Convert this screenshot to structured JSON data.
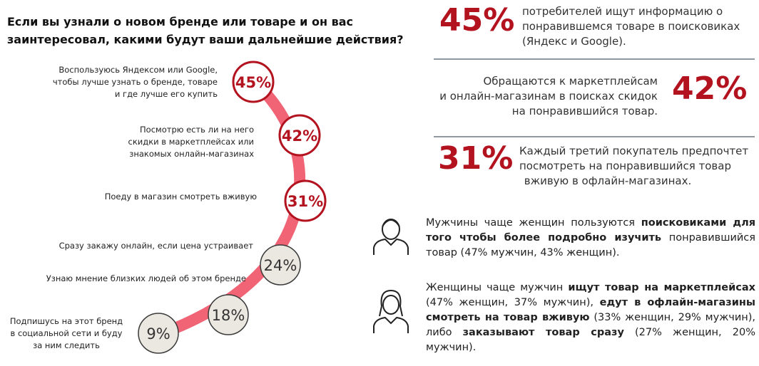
{
  "title": "Если вы узнали о новом бренде или товаре и он вас заинтересовал, какими будут ваши дальнейшие действия?",
  "items": [
    {
      "lines": [
        "Воспользуюсь Яндексом или Google,",
        "чтобы лучше узнать о бренде, товаре",
        "и где лучше его купить"
      ],
      "value": "45%"
    },
    {
      "lines": [
        "Посмотрю есть ли на него",
        "скидки в маркетплейсах или",
        "знакомых онлайн-магазинах"
      ],
      "value": "42%"
    },
    {
      "lines": [
        "Поеду в магазин смотреть вживую"
      ],
      "value": "31%"
    },
    {
      "lines": [
        "Сразу закажу онлайн, если цена устраивает"
      ],
      "value": "24%"
    },
    {
      "lines": [
        "Узнаю мнение близких людей об этом бренде"
      ],
      "value": "18%"
    },
    {
      "lines": [
        "Подпишусь на этот бренд",
        "в социальной сети и буду",
        "за ним следить"
      ],
      "value": "9%"
    }
  ],
  "facts": [
    {
      "value": "45%",
      "lines": [
        "потребителей ищут информацию о",
        "понравившемся товаре в поисковиках",
        "(Яндекс и Google)."
      ]
    },
    {
      "value": "42%",
      "lines": [
        "Обращаются к маркетплейсам",
        "и онлайн-магазинам в поисках скидок",
        "на понравившийся товар."
      ]
    },
    {
      "value": "31%",
      "lines": [
        "Каждый третий покупатель предпочтет",
        "посмотреть на понравившийся товар",
        "вживую в офлайн-магазинах."
      ]
    }
  ],
  "notes": [
    {
      "segments": [
        {
          "text": "Мужчины чаще женщин пользуются ",
          "bold": false
        },
        {
          "text": "поисковиками для того чтобы более подробно изучить",
          "bold": true
        },
        {
          "text": " понравившийся товар (47% мужчин, 43% женщин).",
          "bold": false
        }
      ]
    },
    {
      "segments": [
        {
          "text": "Женщины чаще мужчин ",
          "bold": false
        },
        {
          "text": "ищут товар на маркетплейсах",
          "bold": true
        },
        {
          "text": " (47% женщин, 37% мужчин), ",
          "bold": false
        },
        {
          "text": "едут в офлайн-магазины смотреть на товар вживую",
          "bold": true
        },
        {
          "text": " (33% женщин, 29% мужчин), либо ",
          "bold": false
        },
        {
          "text": "заказывают товар сразу",
          "bold": true
        },
        {
          "text": " (27% женщин, 20% мужчин).",
          "bold": false
        }
      ]
    }
  ]
}
